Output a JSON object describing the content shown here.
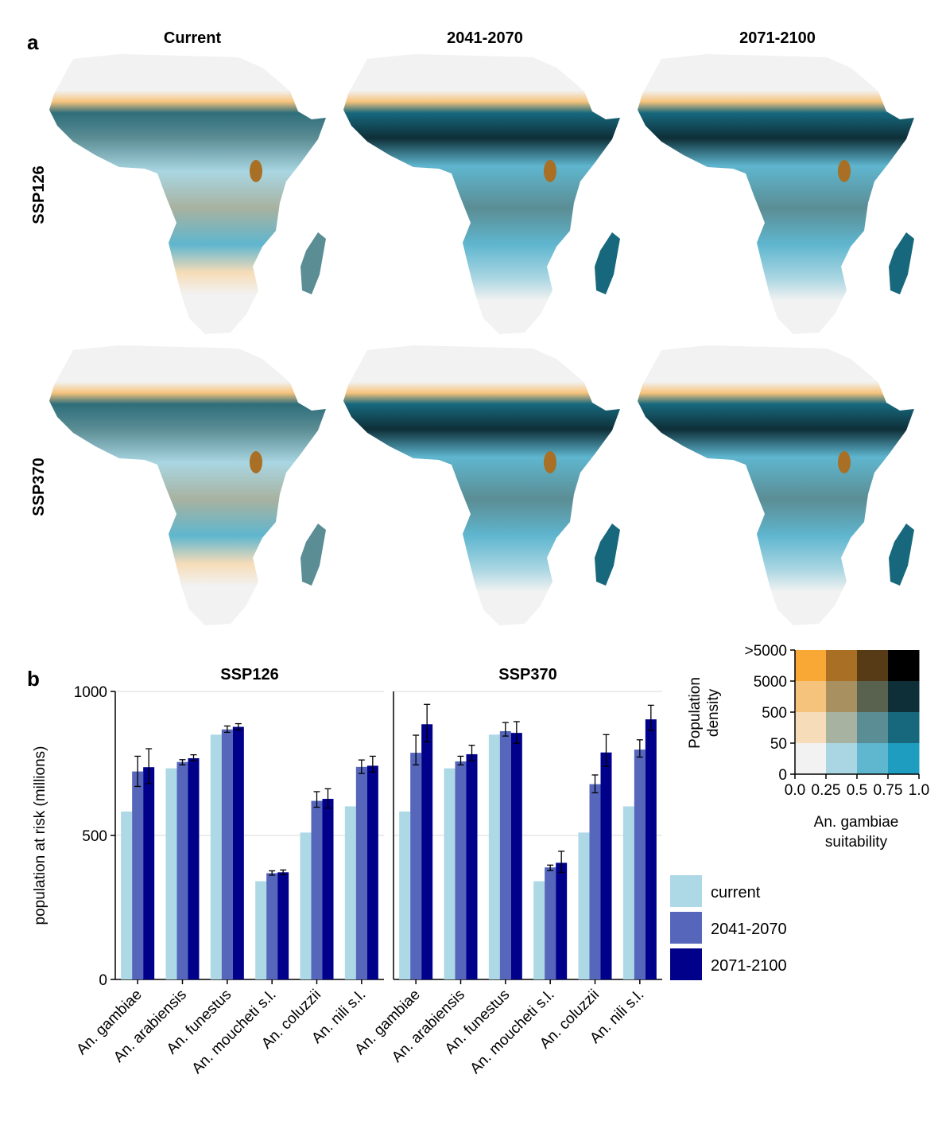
{
  "figure": {
    "panel_a_label": "a",
    "panel_b_label": "b",
    "map_columns": [
      "Current",
      "2041-2070",
      "2071-2100"
    ],
    "map_rows": [
      "SSP126",
      "SSP370"
    ]
  },
  "bivariate_legend": {
    "y_label_line1": "Population",
    "y_label_line2": "density",
    "x_label_line1": "An. gambiae",
    "x_label_line2": "suitability",
    "y_ticks": [
      "0",
      "50",
      "500",
      "5000",
      ">5000"
    ],
    "x_ticks": [
      "0.0",
      "0.25",
      "0.5",
      "0.75",
      "1.0"
    ],
    "grid_colors_top_to_bottom": [
      [
        "#f9a835",
        "#a86f25",
        "#563b16",
        "#000000"
      ],
      [
        "#f6c37c",
        "#a89060",
        "#58624f",
        "#0e2f38"
      ],
      [
        "#f6dcb8",
        "#a8b2a0",
        "#5b8d94",
        "#17687d"
      ],
      [
        "#f2f2f2",
        "#a9d6e2",
        "#5fb6cf",
        "#1e9dc0"
      ]
    ]
  },
  "chart_data": [
    {
      "type": "bar",
      "title": "SSP126",
      "ylabel": "population at risk (millions)",
      "ylim": [
        0,
        1000
      ],
      "y_ticks": [
        0,
        500,
        1000
      ],
      "categories": [
        "An. gambiae",
        "An. arabiensis",
        "An. funestus",
        "An. moucheti s.l.",
        "An. coluzzii",
        "An. nili s.l."
      ],
      "series": [
        {
          "name": "current",
          "color": "#add8e6",
          "values": [
            583,
            733,
            850,
            341,
            510,
            601
          ],
          "errors": null
        },
        {
          "name": "2041-2070",
          "color": "#5566bb",
          "values": [
            722,
            755,
            868,
            369,
            620,
            738
          ],
          "errors": [
            [
              670,
              775
            ],
            [
              745,
              763
            ],
            [
              858,
              880
            ],
            [
              362,
              377
            ],
            [
              598,
              652
            ],
            [
              715,
              762
            ]
          ]
        },
        {
          "name": "2071-2100",
          "color": "#00008b",
          "values": [
            737,
            768,
            877,
            372,
            627,
            742
          ],
          "errors": [
            [
              680,
              801
            ],
            [
              760,
              780
            ],
            [
              866,
              888
            ],
            [
              364,
              380
            ],
            [
              595,
              662
            ],
            [
              720,
              775
            ]
          ]
        }
      ],
      "grid": true
    },
    {
      "type": "bar",
      "title": "SSP370",
      "ylabel": "",
      "ylim": [
        0,
        1000
      ],
      "y_ticks": [
        0,
        500,
        1000
      ],
      "categories": [
        "An. gambiae",
        "An. arabiensis",
        "An. funestus",
        "An. moucheti s.l.",
        "An. coluzzii",
        "An. nili s.l."
      ],
      "series": [
        {
          "name": "current",
          "color": "#add8e6",
          "values": [
            583,
            733,
            850,
            341,
            510,
            601
          ],
          "errors": null
        },
        {
          "name": "2041-2070",
          "color": "#5566bb",
          "values": [
            787,
            757,
            862,
            389,
            678,
            798
          ],
          "errors": [
            [
              745,
              848
            ],
            [
              745,
              775
            ],
            [
              845,
              892
            ],
            [
              378,
              397
            ],
            [
              648,
              710
            ],
            [
              772,
              832
            ]
          ]
        },
        {
          "name": "2071-2100",
          "color": "#00008b",
          "values": [
            886,
            782,
            856,
            405,
            788,
            903
          ],
          "errors": [
            [
              825,
              955
            ],
            [
              760,
              813
            ],
            [
              820,
              895
            ],
            [
              372,
              445
            ],
            [
              740,
              850
            ],
            [
              865,
              952
            ]
          ]
        }
      ],
      "grid": true
    }
  ],
  "legend": {
    "placement": "right",
    "entries": [
      "current",
      "2041-2070",
      "2071-2100"
    ]
  }
}
